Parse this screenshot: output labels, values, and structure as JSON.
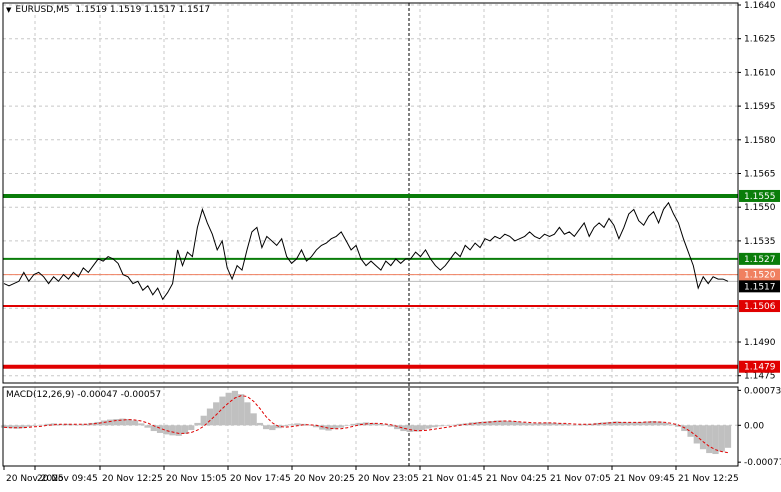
{
  "header": {
    "symbol": "EURUSD,M5",
    "ohlc": "1.1519 1.1519 1.1517 1.1517"
  },
  "macd": {
    "label": "MACD(12,26,9)",
    "value1": "-0.00047",
    "value2": "-0.00057",
    "axis_ticks": [
      "0.00073",
      "0.00",
      "-0.00077"
    ]
  },
  "price_axis": {
    "ticks": [
      "1.1640",
      "1.1625",
      "1.1610",
      "1.1595",
      "1.1580",
      "1.1565",
      "1.1550",
      "1.1535",
      "1.1490",
      "1.1475"
    ]
  },
  "time_axis": {
    "ticks": [
      "20 Nov 2025",
      "20 Nov 09:45",
      "20 Nov 12:25",
      "20 Nov 15:05",
      "20 Nov 17:45",
      "20 Nov 20:25",
      "20 Nov 23:05",
      "21 Nov 01:45",
      "21 Nov 04:25",
      "21 Nov 07:05",
      "21 Nov 09:45",
      "21 Nov 12:25"
    ]
  },
  "levels": [
    {
      "name": "level-1555",
      "label": "1.1555",
      "price": 1.1555,
      "color": "#0a7d0a"
    },
    {
      "name": "level-1527",
      "label": "1.1527",
      "price": 1.1527,
      "color": "#0a7d0a"
    },
    {
      "name": "level-1506",
      "label": "1.1506",
      "price": 1.1506,
      "color": "#e00000"
    },
    {
      "name": "level-1479",
      "label": "1.1479",
      "price": 1.1479,
      "color": "#e00000"
    }
  ],
  "current_price": {
    "label": "1.1517",
    "price": 1.1517
  },
  "ask_line": {
    "label": "1.1520",
    "price": 1.152,
    "color": "#f08060"
  },
  "chart_data": {
    "type": "line",
    "title": "EURUSD,M5",
    "ylim": [
      1.147,
      1.1645
    ],
    "series": [
      {
        "values": [
          1.1516,
          1.1515,
          1.1516,
          1.1517,
          1.1521,
          1.1517,
          1.152,
          1.1521,
          1.1519,
          1.1516,
          1.1519,
          1.1517,
          1.152,
          1.1518,
          1.1521,
          1.1519,
          1.1523,
          1.1521,
          1.1524,
          1.1527,
          1.1526,
          1.1528,
          1.1527,
          1.1525,
          1.152,
          1.1519,
          1.1516,
          1.1517,
          1.1513,
          1.1515,
          1.1511,
          1.1514,
          1.1509,
          1.1512,
          1.1516,
          1.1531,
          1.1524,
          1.153,
          1.1528,
          1.1541,
          1.1549,
          1.1543,
          1.1538,
          1.1531,
          1.1535,
          1.1523,
          1.1518,
          1.1524,
          1.1522,
          1.1531,
          1.1539,
          1.1541,
          1.1532,
          1.1537,
          1.1535,
          1.1533,
          1.1536,
          1.1528,
          1.1525,
          1.1527,
          1.1531,
          1.1526,
          1.1528,
          1.1531,
          1.1533,
          1.1534,
          1.1536,
          1.1537,
          1.1539,
          1.1535,
          1.1531,
          1.1533,
          1.1527,
          1.1524,
          1.1526,
          1.1524,
          1.1522,
          1.1526,
          1.1524,
          1.1527,
          1.1525,
          1.1527,
          1.1527,
          1.153,
          1.1528,
          1.1531,
          1.1527,
          1.1524,
          1.1522,
          1.1524,
          1.1527,
          1.153,
          1.1528,
          1.1533,
          1.1531,
          1.1534,
          1.1532,
          1.1536,
          1.1535,
          1.1537,
          1.1536,
          1.1538,
          1.1537,
          1.1535,
          1.1536,
          1.1537,
          1.1539,
          1.1537,
          1.1536,
          1.1538,
          1.1537,
          1.1538,
          1.1541,
          1.1538,
          1.1539,
          1.1537,
          1.154,
          1.1543,
          1.1537,
          1.1541,
          1.1543,
          1.1541,
          1.1545,
          1.1542,
          1.1536,
          1.1541,
          1.1547,
          1.1549,
          1.1544,
          1.1542,
          1.1546,
          1.1548,
          1.1543,
          1.1549,
          1.1552,
          1.1547,
          1.1543,
          1.1536,
          1.153,
          1.1524,
          1.1514,
          1.1519,
          1.1516,
          1.1519,
          1.1518,
          1.1518,
          1.1517
        ]
      }
    ]
  },
  "macd_data": {
    "histogram": [
      -5e-05,
      -6e-05,
      -7e-05,
      -6e-05,
      -3e-05,
      -1e-05,
      1e-05,
      3e-05,
      4e-05,
      2e-05,
      3e-05,
      2e-05,
      1e-05,
      3e-05,
      5e-05,
      7e-05,
      0.0001,
      0.00012,
      0.00013,
      0.00014,
      0.00013,
      0.0001,
      4e-05,
      -5e-05,
      -0.00012,
      -0.00016,
      -0.00019,
      -0.00021,
      -0.00022,
      -0.00018,
      -0.0001,
      5e-05,
      0.0002,
      0.00035,
      0.00048,
      0.0006,
      0.00068,
      0.00072,
      0.00065,
      0.00048,
      0.00025,
      5e-05,
      -8e-05,
      -0.0001,
      -6e-05,
      -2e-05,
      2e-05,
      4e-05,
      3e-05,
      1e-05,
      -4e-05,
      -9e-05,
      -0.00011,
      -8e-05,
      -5e-05,
      -1e-05,
      3e-05,
      5e-05,
      6e-05,
      5e-05,
      3e-05,
      2e-05,
      -3e-05,
      -8e-05,
      -0.00012,
      -0.00014,
      -0.00013,
      -0.0001,
      -7e-05,
      -4e-05,
      -2e-05,
      -1e-05,
      1e-05,
      3e-05,
      4e-05,
      6e-05,
      7e-05,
      8e-05,
      9e-05,
      0.0001,
      0.0001,
      9e-05,
      8e-05,
      6e-05,
      5e-05,
      4e-05,
      5e-05,
      6e-05,
      5e-05,
      4e-05,
      3e-05,
      1e-05,
      1e-05,
      2e-05,
      3e-05,
      5e-05,
      6e-05,
      7e-05,
      8e-05,
      7e-05,
      6e-05,
      6e-05,
      7e-05,
      8e-05,
      9e-05,
      8e-05,
      5e-05,
      2e-05,
      -3e-05,
      -0.00012,
      -0.00024,
      -0.00038,
      -0.0005,
      -0.00058,
      -0.0006,
      -0.00055,
      -0.00047
    ],
    "signal": [
      -4e-05,
      -5e-05,
      -5e-05,
      -5e-05,
      -4e-05,
      -3e-05,
      -2e-05,
      0.0,
      1e-05,
      2e-05,
      2e-05,
      2e-05,
      2e-05,
      2e-05,
      3e-05,
      4e-05,
      6e-05,
      8e-05,
      0.0001,
      0.00011,
      0.00012,
      0.00011,
      9e-05,
      5e-05,
      -1e-05,
      -6e-05,
      -0.00011,
      -0.00014,
      -0.00017,
      -0.00017,
      -0.00015,
      -0.0001,
      -2e-05,
      0.0001,
      0.00022,
      0.00035,
      0.00047,
      0.00057,
      0.00062,
      0.0006,
      0.0005,
      0.00035,
      0.00018,
      5e-05,
      -2e-05,
      -4e-05,
      -3e-05,
      -1e-05,
      1e-05,
      1e-05,
      0.0,
      -3e-05,
      -6e-05,
      -7e-05,
      -7e-05,
      -5e-05,
      -2e-05,
      1e-05,
      3e-05,
      4e-05,
      4e-05,
      3e-05,
      1e-05,
      -2e-05,
      -6e-05,
      -9e-05,
      -0.00011,
      -0.00011,
      -0.0001,
      -8e-05,
      -6e-05,
      -4e-05,
      -2e-05,
      0.0,
      2e-05,
      3e-05,
      5e-05,
      6e-05,
      7e-05,
      8e-05,
      9e-05,
      9e-05,
      8e-05,
      7e-05,
      6e-05,
      5e-05,
      5e-05,
      5e-05,
      5e-05,
      4e-05,
      4e-05,
      3e-05,
      2e-05,
      2e-05,
      2e-05,
      3e-05,
      4e-05,
      5e-05,
      6e-05,
      6e-05,
      6e-05,
      6e-05,
      6e-05,
      7e-05,
      7e-05,
      7e-05,
      6e-05,
      4e-05,
      1e-05,
      -5e-05,
      -0.00013,
      -0.00023,
      -0.00034,
      -0.00044,
      -0.00051,
      -0.00055,
      -0.00057
    ],
    "ylim": [
      -0.00085,
      0.0008
    ]
  },
  "colors": {
    "price_line": "#000000",
    "grid": "#c8c8c8",
    "histogram": "#c0c0c0",
    "signal": "#e00000",
    "crosshair": "#000000"
  }
}
